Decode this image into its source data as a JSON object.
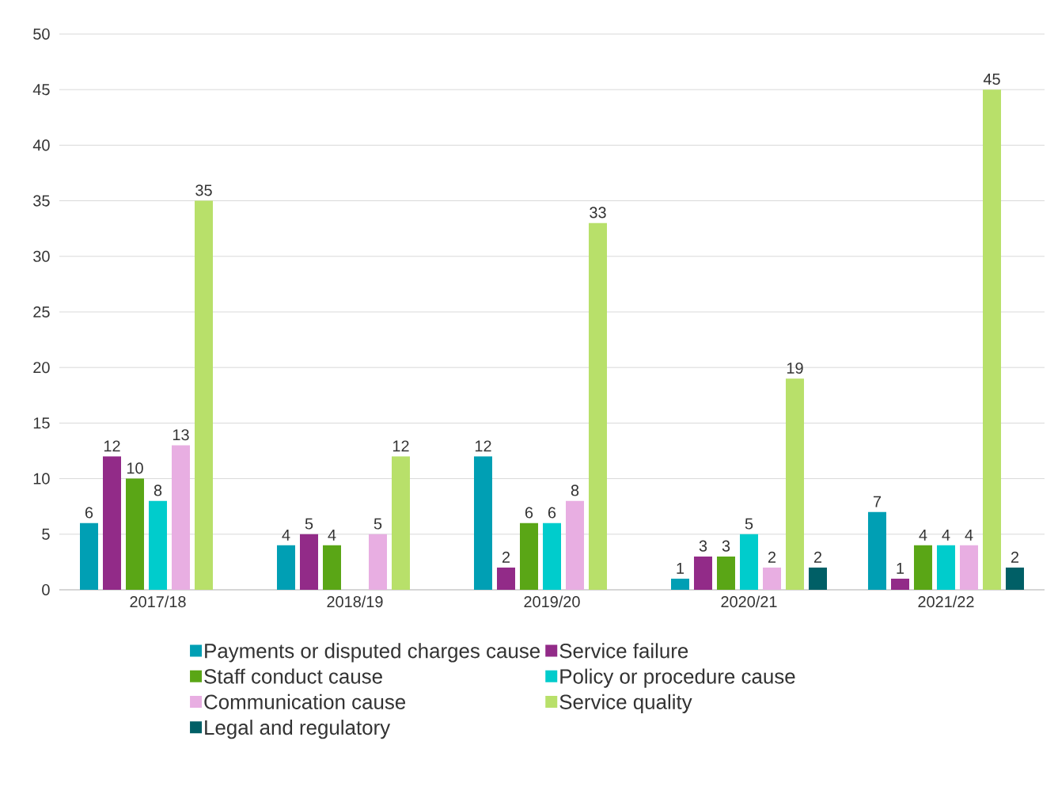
{
  "chart_data": {
    "type": "bar",
    "categories": [
      "2017/18",
      "2018/19",
      "2019/20",
      "2020/21",
      "2021/22"
    ],
    "series": [
      {
        "name": "Payments or disputed charges cause",
        "color": "#009fb4",
        "values": [
          6,
          4,
          12,
          1,
          7
        ]
      },
      {
        "name": "Service failure",
        "color": "#922b88",
        "values": [
          12,
          5,
          2,
          3,
          1
        ]
      },
      {
        "name": "Staff conduct cause",
        "color": "#5aa616",
        "values": [
          10,
          4,
          6,
          3,
          4
        ]
      },
      {
        "name": "Policy or procedure cause",
        "color": "#00cccc",
        "values": [
          8,
          null,
          6,
          5,
          4
        ]
      },
      {
        "name": "Communication cause",
        "color": "#e8aee2",
        "values": [
          13,
          5,
          8,
          2,
          4
        ]
      },
      {
        "name": "Service quality",
        "color": "#b8e06a",
        "values": [
          35,
          12,
          33,
          19,
          45
        ]
      },
      {
        "name": "Legal and regulatory",
        "color": "#005f66",
        "values": [
          null,
          null,
          null,
          2,
          2
        ]
      }
    ],
    "ylim": [
      0,
      50
    ],
    "yticks": [
      0,
      5,
      10,
      15,
      20,
      25,
      30,
      35,
      40,
      45,
      50
    ],
    "grid": "y",
    "legend": "bottom",
    "data_labels": true
  }
}
